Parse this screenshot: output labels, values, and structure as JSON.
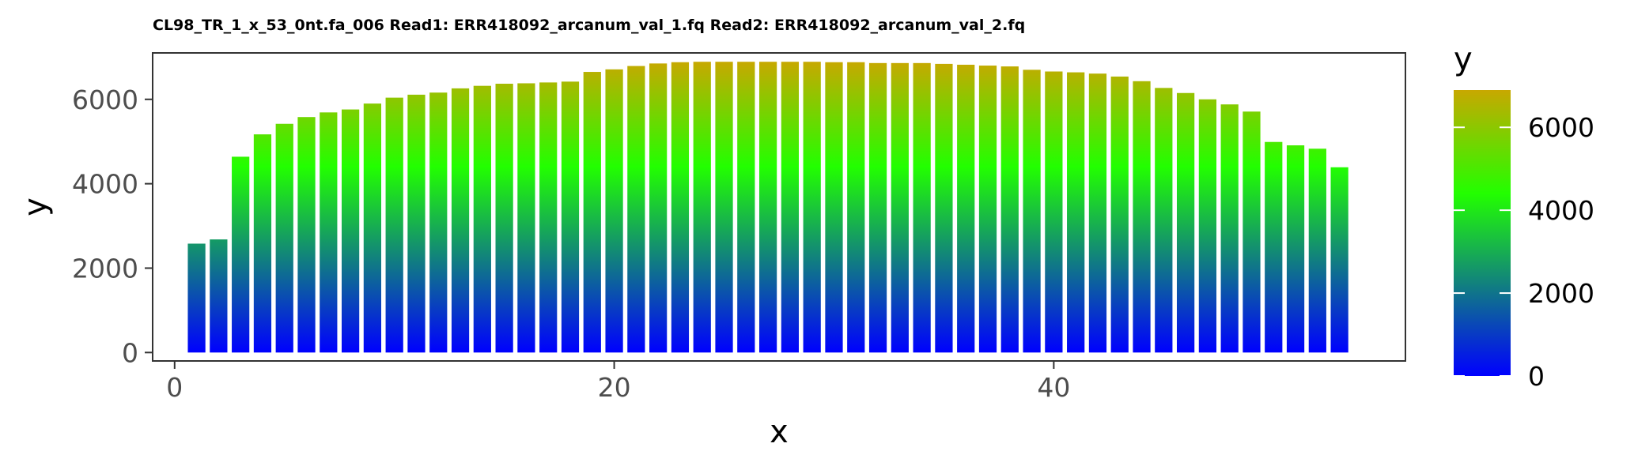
{
  "chart_data": {
    "type": "bar",
    "title": "CL98_TR_1_x_53_0nt.fa_006 Read1: ERR418092_arcanum_val_1.fq Read2: ERR418092_arcanum_val_2.fq",
    "xlabel": "x",
    "ylabel": "y",
    "xlim": [
      -1,
      56
    ],
    "ylim": [
      -200,
      7100
    ],
    "xticks": [
      0,
      20,
      40
    ],
    "yticks": [
      0,
      2000,
      4000,
      6000
    ],
    "grid": false,
    "x": [
      1,
      2,
      3,
      4,
      5,
      6,
      7,
      8,
      9,
      10,
      11,
      12,
      13,
      14,
      15,
      16,
      17,
      18,
      19,
      20,
      21,
      22,
      23,
      24,
      25,
      26,
      27,
      28,
      29,
      30,
      31,
      32,
      33,
      34,
      35,
      36,
      37,
      38,
      39,
      40,
      41,
      42,
      43,
      44,
      45,
      46,
      47,
      48,
      49,
      50,
      51,
      52,
      53
    ],
    "values": [
      2580,
      2680,
      4640,
      5170,
      5420,
      5580,
      5690,
      5760,
      5900,
      6040,
      6110,
      6160,
      6260,
      6320,
      6370,
      6380,
      6400,
      6420,
      6650,
      6710,
      6790,
      6850,
      6880,
      6890,
      6890,
      6890,
      6890,
      6890,
      6890,
      6880,
      6880,
      6860,
      6860,
      6860,
      6840,
      6820,
      6800,
      6780,
      6700,
      6660,
      6640,
      6610,
      6540,
      6430,
      6270,
      6150,
      6000,
      5880,
      5710,
      4990,
      4910,
      4830,
      4390
    ],
    "fill_scale": {
      "type": "gradient",
      "title": "y",
      "breaks": [
        0,
        2000,
        4000,
        6000
      ],
      "low_value": 0,
      "mid_value": 4400,
      "high_value": 6900,
      "low": "#0000ff",
      "mid": "#22ff00",
      "high": "#c8a800",
      "legend_position": "right"
    }
  }
}
